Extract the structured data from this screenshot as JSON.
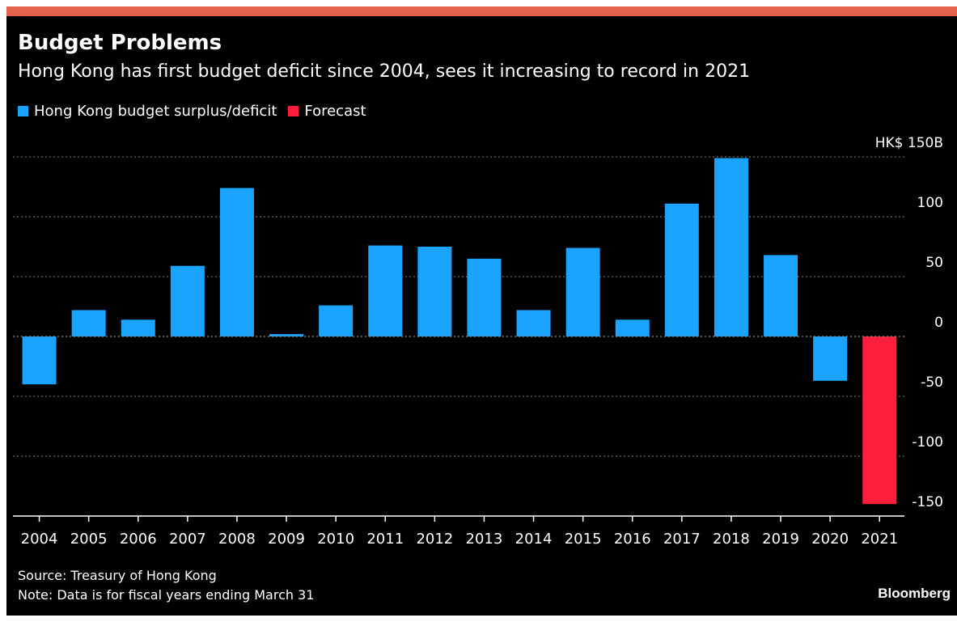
{
  "title": "Budget Problems",
  "subtitle": "Hong Kong has first budget deficit since 2004, sees it increasing to record in 2021",
  "legend": [
    {
      "label": "Hong Kong budget surplus/deficit",
      "color": "#1aa3ff"
    },
    {
      "label": "Forecast",
      "color": "#ff1f3d"
    }
  ],
  "source": "Source: Treasury of Hong Kong",
  "note": "Note: Data is for fiscal years ending March 31",
  "brand": "Bloomberg",
  "chart_data": {
    "type": "bar",
    "categories": [
      "2004",
      "2005",
      "2006",
      "2007",
      "2008",
      "2009",
      "2010",
      "2011",
      "2012",
      "2013",
      "2014",
      "2015",
      "2016",
      "2017",
      "2018",
      "2019",
      "2020",
      "2021"
    ],
    "series": [
      {
        "name": "Hong Kong budget surplus/deficit",
        "color": "#1aa3ff",
        "values": [
          -40,
          22,
          14,
          59,
          124,
          2,
          26,
          76,
          75,
          65,
          22,
          74,
          14,
          111,
          149,
          68,
          -37,
          null
        ]
      },
      {
        "name": "Forecast",
        "color": "#ff1f3d",
        "values": [
          null,
          null,
          null,
          null,
          null,
          null,
          null,
          null,
          null,
          null,
          null,
          null,
          null,
          null,
          null,
          null,
          null,
          -140
        ]
      }
    ],
    "yticks": [
      150,
      100,
      50,
      0,
      -50,
      -100,
      -150
    ],
    "ytick_labels": [
      "HK$ 150B",
      "100",
      "50",
      "0",
      "-50",
      "-100",
      "-150"
    ],
    "ylim": [
      -150,
      150
    ],
    "grid": true,
    "legend_position": "top-left"
  }
}
